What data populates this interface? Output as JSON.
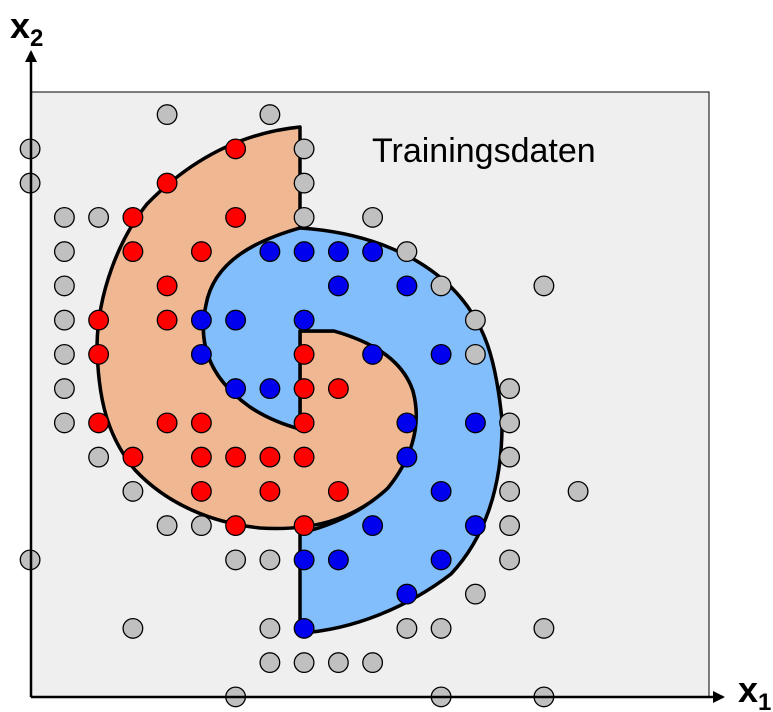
{
  "title": "Trainingsdaten",
  "x_axis": {
    "symbol": "x",
    "subscript": "1"
  },
  "y_axis": {
    "symbol": "x",
    "subscript": "2"
  },
  "colors": {
    "plot_background": "#efefef",
    "class_red_fill": "#ff0000",
    "class_blue_fill": "#0000ee",
    "unlabeled_fill": "#c0c0c0",
    "region_red": "#efb893",
    "region_blue": "#82bdfc",
    "outline": "#000000"
  },
  "chart_data": {
    "type": "scatter",
    "title": "Trainingsdaten",
    "xlabel": "x1",
    "ylabel": "x2",
    "xlim": [
      0,
      21
    ],
    "ylim": [
      0,
      19
    ],
    "grid": false,
    "regions": [
      {
        "name": "red spiral arm",
        "color": "#efb893"
      },
      {
        "name": "blue spiral arm",
        "color": "#82bdfc"
      }
    ],
    "series": [
      {
        "color": "#ff0000",
        "points": [
          [
            6.5,
            16.5
          ],
          [
            4.5,
            15.5
          ],
          [
            3.5,
            14.5
          ],
          [
            6.5,
            14.5
          ],
          [
            3.5,
            13.5
          ],
          [
            5.5,
            13.5
          ],
          [
            4.5,
            12.5
          ],
          [
            2.5,
            11.5
          ],
          [
            4.5,
            11.5
          ],
          [
            2.5,
            10.5
          ],
          [
            8.5,
            10.5
          ],
          [
            8.5,
            9.5
          ],
          [
            9.5,
            9.5
          ],
          [
            2.5,
            8.5
          ],
          [
            4.5,
            8.5
          ],
          [
            5.5,
            8.5
          ],
          [
            8.5,
            8.5
          ],
          [
            3.5,
            7.5
          ],
          [
            5.5,
            7.5
          ],
          [
            6.5,
            7.5
          ],
          [
            7.5,
            7.5
          ],
          [
            8.5,
            7.5
          ],
          [
            5.5,
            6.5
          ],
          [
            7.5,
            6.5
          ],
          [
            9.5,
            6.5
          ],
          [
            6.5,
            5.5
          ],
          [
            8.5,
            5.5
          ]
        ]
      },
      {
        "color": "#0000ee",
        "points": [
          [
            7.5,
            13.5
          ],
          [
            8.5,
            13.5
          ],
          [
            9.5,
            13.5
          ],
          [
            10.5,
            13.5
          ],
          [
            9.5,
            12.5
          ],
          [
            11.5,
            12.5
          ],
          [
            5.5,
            11.5
          ],
          [
            6.5,
            11.5
          ],
          [
            8.5,
            11.5
          ],
          [
            5.5,
            10.5
          ],
          [
            10.5,
            10.5
          ],
          [
            12.5,
            10.5
          ],
          [
            6.5,
            9.5
          ],
          [
            7.5,
            9.5
          ],
          [
            11.5,
            8.5
          ],
          [
            13.5,
            8.5
          ],
          [
            11.5,
            7.5
          ],
          [
            12.5,
            6.5
          ],
          [
            10.5,
            5.5
          ],
          [
            13.5,
            5.5
          ],
          [
            8.5,
            4.5
          ],
          [
            9.5,
            4.5
          ],
          [
            12.5,
            4.5
          ],
          [
            11.5,
            3.5
          ],
          [
            8.5,
            2.5
          ]
        ]
      },
      {
        "color": "#c0c0c0",
        "points": [
          [
            4.5,
            17.5
          ],
          [
            7.5,
            17.5
          ],
          [
            0.5,
            16.5
          ],
          [
            8.5,
            16.5
          ],
          [
            0.5,
            15.5
          ],
          [
            8.5,
            15.5
          ],
          [
            1.5,
            14.5
          ],
          [
            2.5,
            14.5
          ],
          [
            8.5,
            14.5
          ],
          [
            10.5,
            14.5
          ],
          [
            1.5,
            13.5
          ],
          [
            11.5,
            13.5
          ],
          [
            1.5,
            12.5
          ],
          [
            12.5,
            12.5
          ],
          [
            15.5,
            12.5
          ],
          [
            1.5,
            11.5
          ],
          [
            13.5,
            11.5
          ],
          [
            1.5,
            10.5
          ],
          [
            13.5,
            10.5
          ],
          [
            1.5,
            9.5
          ],
          [
            14.5,
            9.5
          ],
          [
            1.5,
            8.5
          ],
          [
            14.5,
            8.5
          ],
          [
            2.5,
            7.5
          ],
          [
            14.5,
            7.5
          ],
          [
            3.5,
            6.5
          ],
          [
            14.5,
            6.5
          ],
          [
            16.5,
            6.5
          ],
          [
            4.5,
            5.5
          ],
          [
            5.5,
            5.5
          ],
          [
            14.5,
            5.5
          ],
          [
            0.5,
            4.5
          ],
          [
            6.5,
            4.5
          ],
          [
            7.5,
            4.5
          ],
          [
            14.5,
            4.5
          ],
          [
            13.5,
            3.5
          ],
          [
            3.5,
            2.5
          ],
          [
            7.5,
            2.5
          ],
          [
            11.5,
            2.5
          ],
          [
            12.5,
            2.5
          ],
          [
            15.5,
            2.5
          ],
          [
            7.5,
            1.5
          ],
          [
            8.5,
            1.5
          ],
          [
            9.5,
            1.5
          ],
          [
            10.5,
            1.5
          ],
          [
            6.5,
            0.5
          ],
          [
            12.5,
            0.5
          ],
          [
            15.5,
            0.5
          ]
        ]
      }
    ]
  }
}
